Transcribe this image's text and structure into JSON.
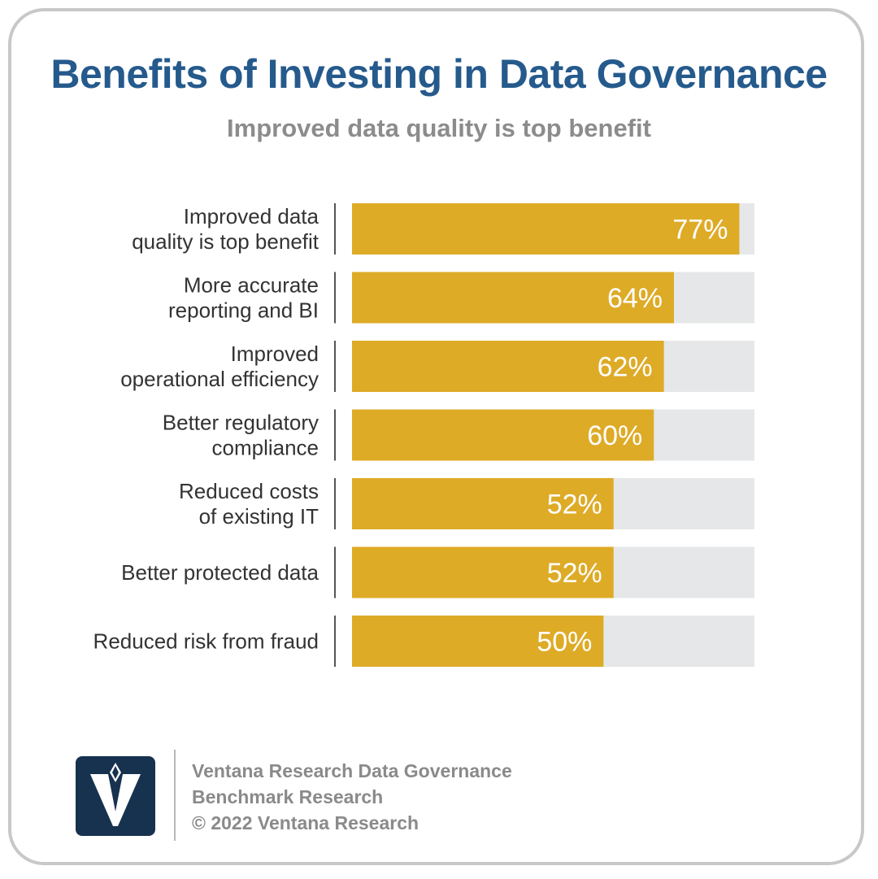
{
  "header": {
    "title": "Benefits of Investing in Data Governance",
    "subtitle": "Improved data quality is top benefit"
  },
  "chart_data": {
    "type": "bar",
    "orientation": "horizontal",
    "title": "Benefits of Investing in Data Governance",
    "subtitle": "Improved data quality is top benefit",
    "categories": [
      [
        "Improved data",
        "quality is top benefit"
      ],
      [
        "More accurate",
        "reporting and BI"
      ],
      [
        "Improved",
        "operational efficiency"
      ],
      [
        "Better regulatory",
        "compliance"
      ],
      [
        "Reduced costs",
        "of existing IT"
      ],
      [
        "Better protected data"
      ],
      [
        "Reduced risk from fraud"
      ]
    ],
    "values": [
      77,
      64,
      62,
      60,
      52,
      52,
      50
    ],
    "value_labels": [
      "77%",
      "64%",
      "62%",
      "60%",
      "52%",
      "52%",
      "50%"
    ],
    "xlim": [
      0,
      80
    ],
    "grid": false,
    "colors": {
      "bar": "#deab27",
      "track": "#e6e7e9"
    }
  },
  "footer": {
    "lines": [
      "Ventana Research Data Governance",
      "Benchmark Research",
      "© 2022 Ventana Research"
    ],
    "logo": "ventana-v-logo",
    "logo_color": "#17324f"
  }
}
